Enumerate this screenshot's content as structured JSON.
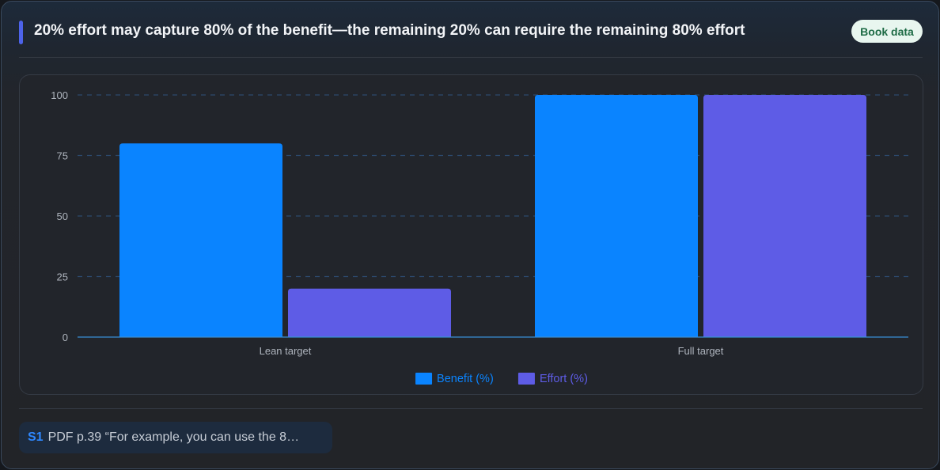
{
  "header": {
    "title": "20% effort may capture 80% of the benefit—the remaining 20% can require the remaining 80% effort",
    "book_button": "Book data"
  },
  "colors": {
    "accent": "#4d63ea",
    "benefit": "#0a84ff",
    "effort": "#5e5ce6",
    "grid": "#2c4a6e",
    "axis": "#3a8fd6"
  },
  "chart_data": {
    "type": "bar",
    "categories": [
      "Lean target",
      "Full target"
    ],
    "series": [
      {
        "name": "Benefit (%)",
        "values": [
          80,
          100
        ]
      },
      {
        "name": "Effort (%)",
        "values": [
          20,
          100
        ]
      }
    ],
    "yticks": [
      0,
      25,
      50,
      75,
      100
    ],
    "ylim": [
      0,
      100
    ],
    "grid": true,
    "legend_position": "bottom-center"
  },
  "source": {
    "id": "S1",
    "text": "PDF p.39 “For example, you can use the 8…"
  }
}
